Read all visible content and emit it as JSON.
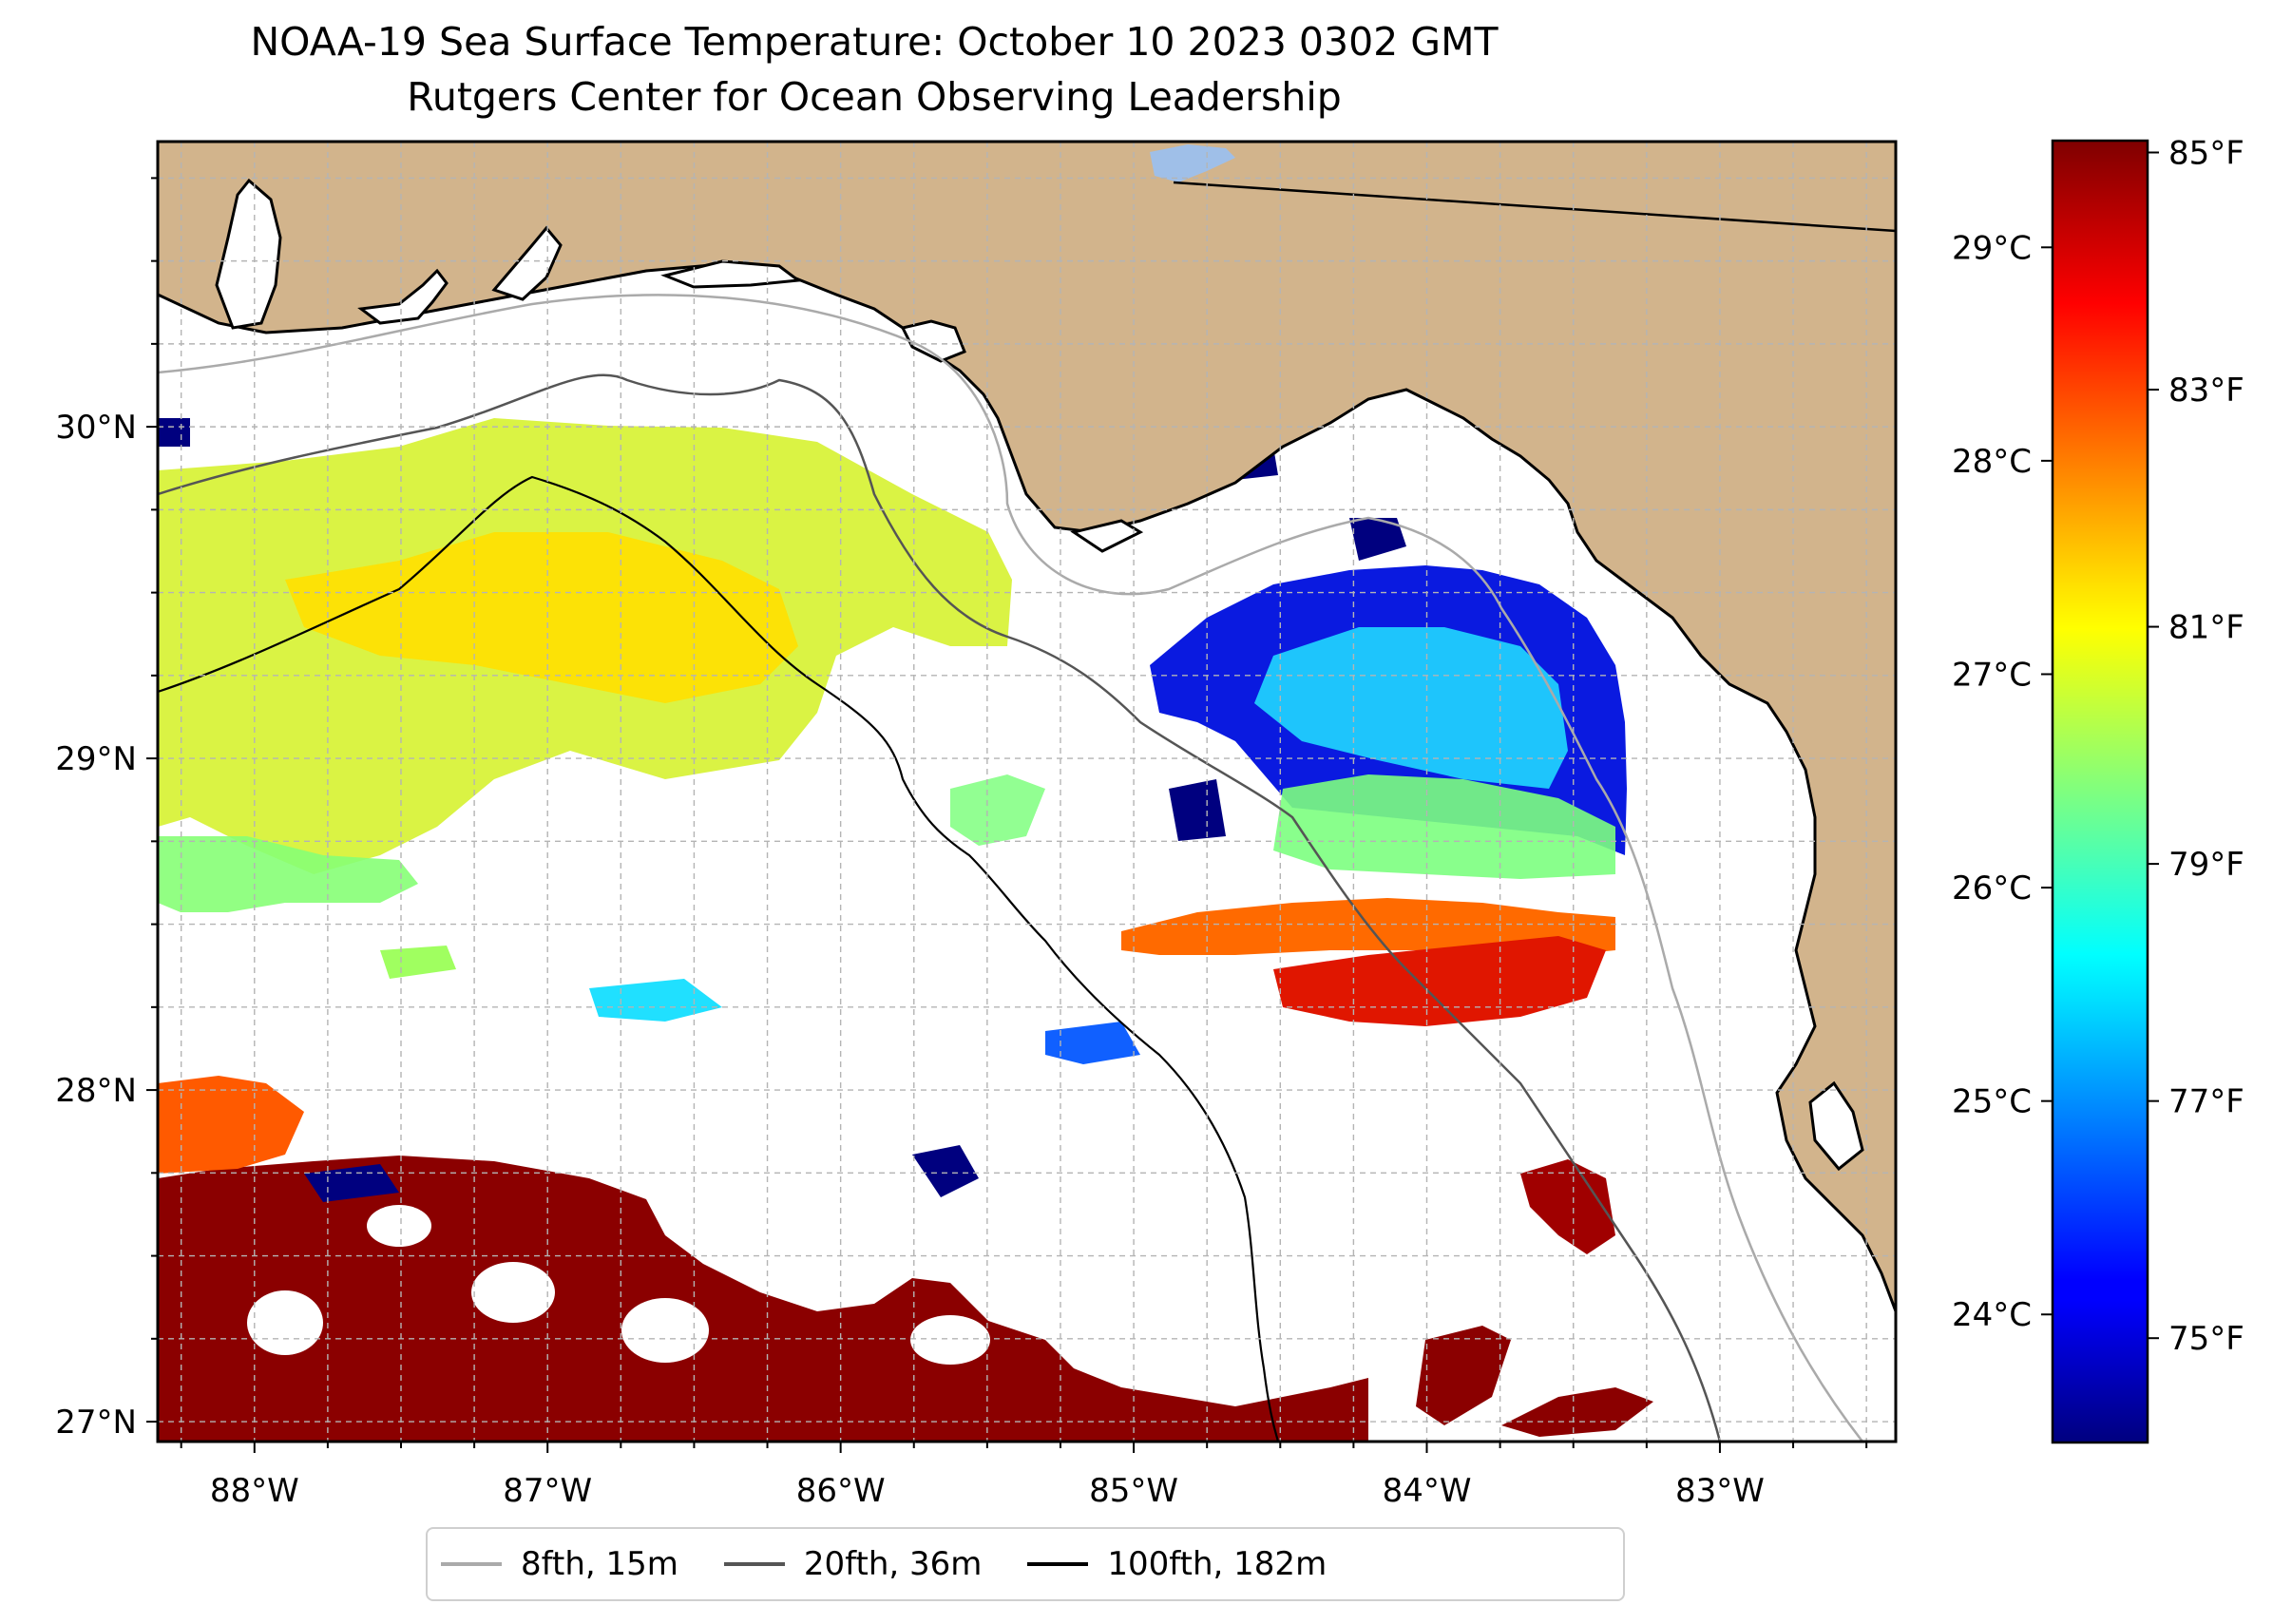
{
  "title": {
    "line1": "NOAA-19 Sea Surface Temperature: October 10 2023 0302 GMT",
    "line2": "Rutgers Center for Ocean Observing Leadership"
  },
  "map": {
    "extent": {
      "lon_min": -88.33,
      "lon_max": -82.4,
      "lat_min": 26.94,
      "lat_max": 30.86
    },
    "lon_ticks": [
      {
        "value": -88,
        "label": "88°W"
      },
      {
        "value": -87,
        "label": "87°W"
      },
      {
        "value": -86,
        "label": "86°W"
      },
      {
        "value": -85,
        "label": "85°W"
      },
      {
        "value": -84,
        "label": "84°W"
      },
      {
        "value": -83,
        "label": "83°W"
      }
    ],
    "lat_ticks": [
      {
        "value": 27,
        "label": "27°N"
      },
      {
        "value": 28,
        "label": "28°N"
      },
      {
        "value": 29,
        "label": "29°N"
      },
      {
        "value": 30,
        "label": "30°N"
      }
    ],
    "gridlines": true,
    "land_color": "#D2B48C",
    "coast_color": "#000000",
    "inland_water_color": "#9FBFE8"
  },
  "colorbar": {
    "colormap": "jet",
    "celsius_range": [
      23.4,
      29.5
    ],
    "celsius_ticks": [
      {
        "value": 24,
        "label": "24°C"
      },
      {
        "value": 25,
        "label": "25°C"
      },
      {
        "value": 26,
        "label": "26°C"
      },
      {
        "value": 27,
        "label": "27°C"
      },
      {
        "value": 28,
        "label": "28°C"
      },
      {
        "value": 29,
        "label": "29°C"
      }
    ],
    "fahrenheit_ticks": [
      {
        "value": 75,
        "label": "75°F"
      },
      {
        "value": 77,
        "label": "77°F"
      },
      {
        "value": 79,
        "label": "79°F"
      },
      {
        "value": 81,
        "label": "81°F"
      },
      {
        "value": 83,
        "label": "83°F"
      },
      {
        "value": 85,
        "label": "85°F"
      }
    ]
  },
  "legend": {
    "placement": "bottom-center",
    "items": [
      {
        "label": "8fth, 15m",
        "color": "#aaaaaa"
      },
      {
        "label": "20fth, 36m",
        "color": "#555555"
      },
      {
        "label": "100fth, 182m",
        "color": "#000000"
      }
    ]
  }
}
